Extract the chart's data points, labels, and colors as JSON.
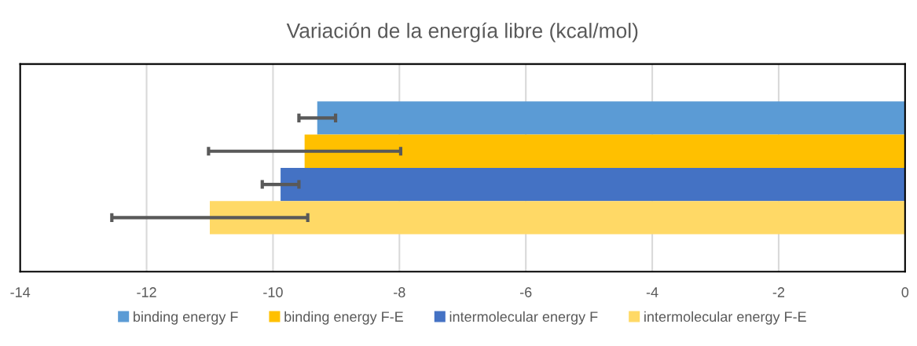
{
  "chart_data": {
    "type": "bar",
    "orientation": "horizontal",
    "title": "Variación de la energía libre (kcal/mol)",
    "categories": [
      null
    ],
    "series": [
      {
        "name": "binding energy F",
        "color": "#5b9bd5",
        "values": [
          -9.3
        ],
        "errors": [
          0.29
        ]
      },
      {
        "name": "binding energy F-E",
        "color": "#ffc000",
        "values": [
          -9.5
        ],
        "errors": [
          1.52
        ]
      },
      {
        "name": "intermolecular energy F",
        "color": "#4472c4",
        "values": [
          -9.88
        ],
        "errors": [
          0.29
        ]
      },
      {
        "name": "intermolecular energy F-E",
        "color": "#ffd966",
        "values": [
          -11.0
        ],
        "errors": [
          1.55
        ]
      }
    ],
    "xlim": [
      -14,
      0
    ],
    "xticks": [
      -14,
      -12,
      -10,
      -8,
      -6,
      -4,
      -2,
      0
    ],
    "grid": "x",
    "legend": "bottom",
    "tick_labels": "x"
  }
}
